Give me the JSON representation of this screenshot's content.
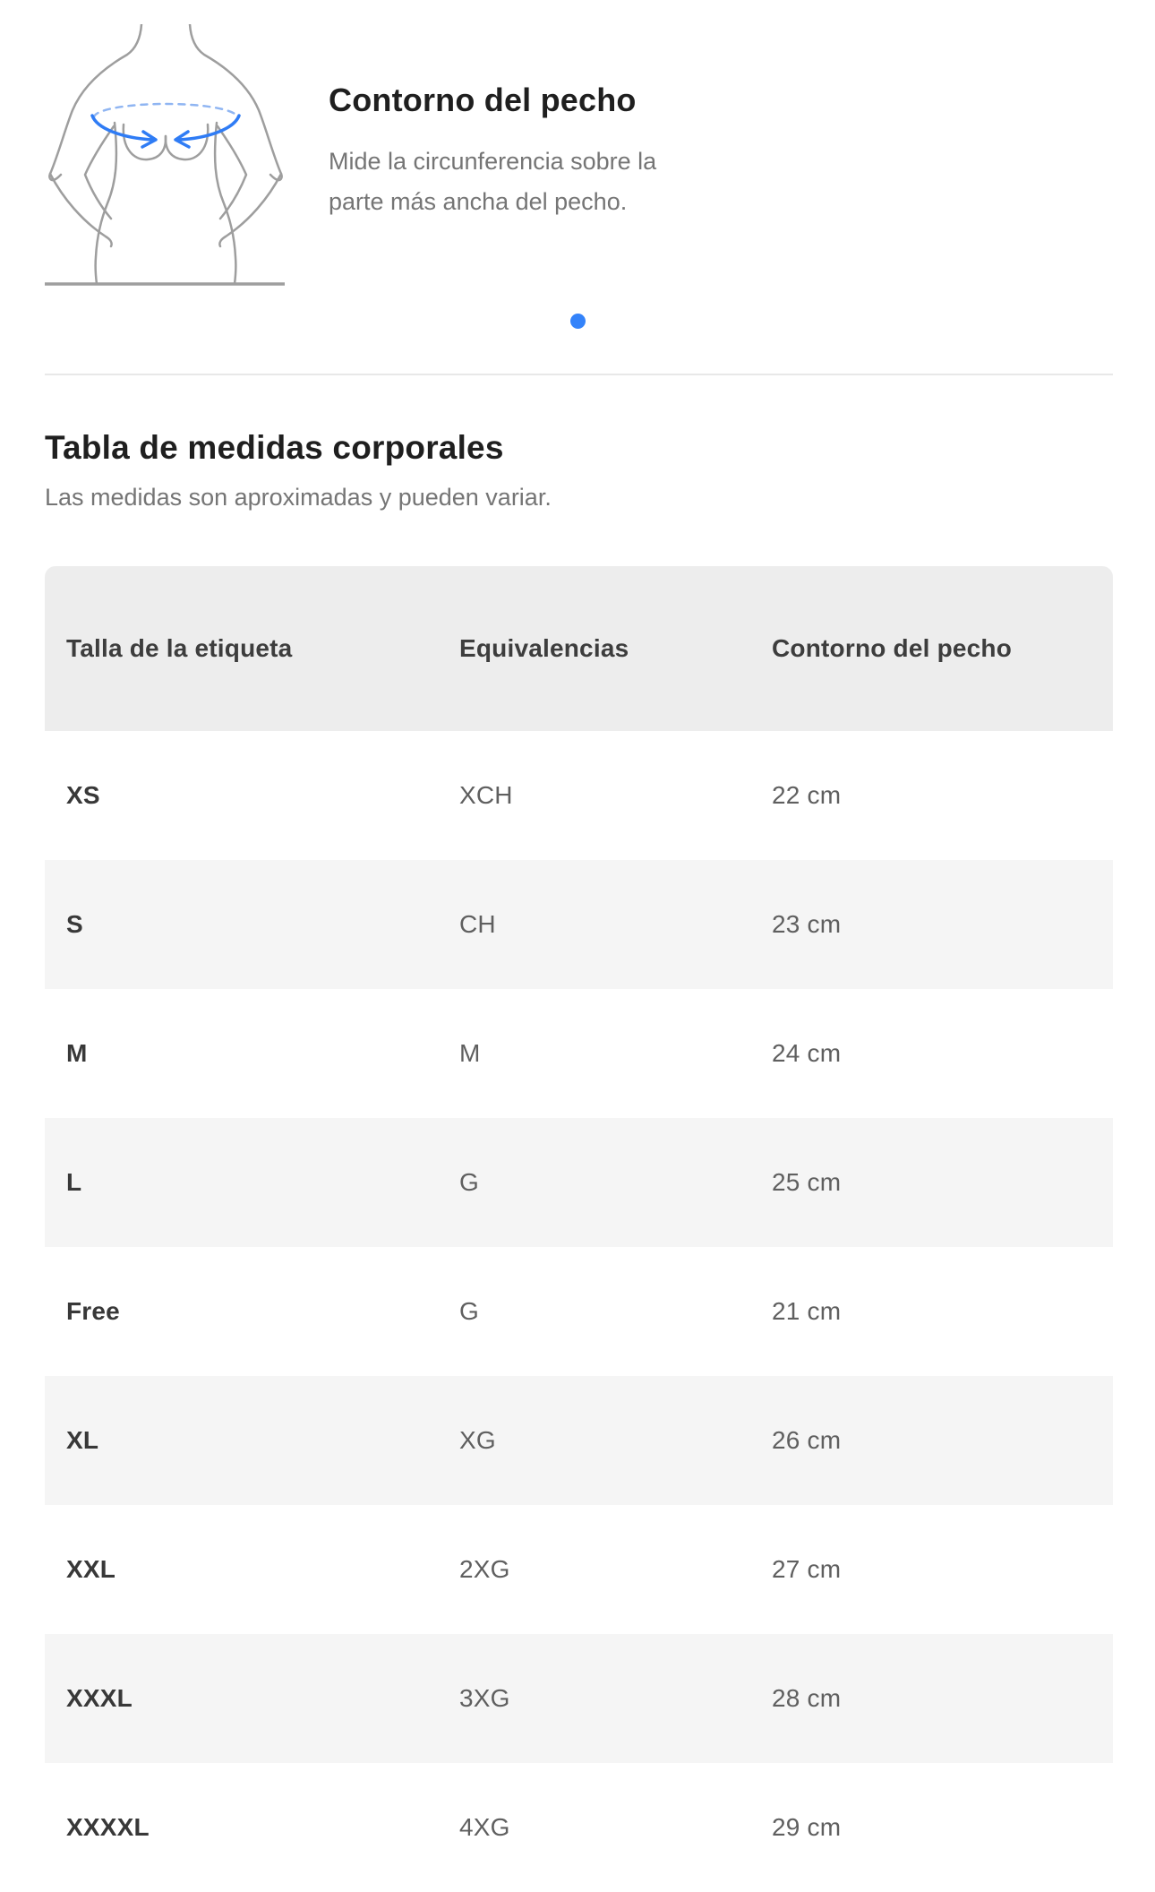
{
  "hero": {
    "title": "Contorno del pecho",
    "description": "Mide la circunferencia sobre la parte más ancha del pecho.",
    "description_lines": [
      "Mide la circunferencia sobre la",
      "parte más ancha del pecho."
    ],
    "illustration": "female-torso-chest-measuring-tape"
  },
  "carousel": {
    "active_dot_color": "#3483FA",
    "dot_count": 1
  },
  "section": {
    "title": "Tabla de medidas corporales",
    "subtitle": "Las medidas son aproximadas y pueden variar."
  },
  "table": {
    "columns": [
      "Talla de la etiqueta",
      "Equivalencias",
      "Contorno del pecho"
    ],
    "rows": [
      [
        "XS",
        "XCH",
        "22 cm"
      ],
      [
        "S",
        "CH",
        "23 cm"
      ],
      [
        "M",
        "M",
        "24 cm"
      ],
      [
        "L",
        "G",
        "25 cm"
      ],
      [
        "Free",
        "G",
        "21 cm"
      ],
      [
        "XL",
        "XG",
        "26 cm"
      ],
      [
        "XXL",
        "2XG",
        "27 cm"
      ],
      [
        "XXXL",
        "3XG",
        "28 cm"
      ],
      [
        "XXXXL",
        "4XG",
        "29 cm"
      ]
    ],
    "header_bg": "#EDEDED",
    "stripe_bg": "#F5F5F5"
  },
  "colors": {
    "accent_blue": "#3483FA",
    "outline_grey": "#9E9E9E",
    "divider": "#E8E8E8",
    "text_primary": "#1F1F1F",
    "text_secondary": "#757575"
  }
}
